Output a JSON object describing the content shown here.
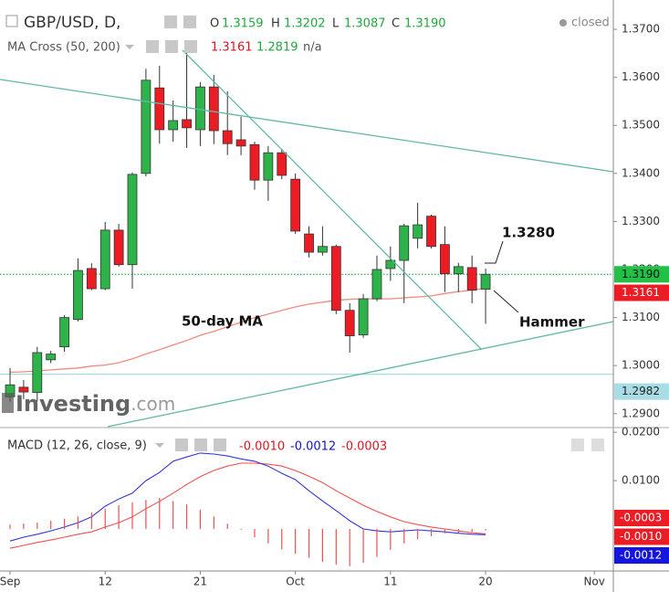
{
  "header": {
    "symbol": "GBP/USD, D,",
    "o_label": "O",
    "open": "1.3159",
    "h_label": "H",
    "high": "1.3202",
    "l_label": "L",
    "low": "1.3087",
    "c_label": "C",
    "close": "1.3190",
    "status": "closed",
    "ma_title": "MA Cross (50, 200)",
    "ma_values": [
      "1.3161",
      "1.2819",
      "n/a"
    ],
    "macd_title": "MACD (12, 26, close, 9)"
  },
  "logo": {
    "name": "Investing",
    "suffix": ".com"
  },
  "chart_data": [
    {
      "type": "candlestick",
      "xlim": [
        -0.74,
        44.4
      ],
      "xticks": [
        {
          "value": 0,
          "label": "Sep"
        },
        {
          "value": 7,
          "label": "12"
        },
        {
          "value": 14,
          "label": "21"
        },
        {
          "value": 21,
          "label": "Oct"
        },
        {
          "value": 28,
          "label": "11"
        },
        {
          "value": 35,
          "label": "20"
        },
        {
          "value": 43,
          "label": "Nov"
        }
      ],
      "ylim": [
        1.2871,
        1.3761
      ],
      "yticks": [
        {
          "value": 1.37,
          "label": "1.3700"
        },
        {
          "value": 1.36,
          "label": "1.3600"
        },
        {
          "value": 1.35,
          "label": "1.3500"
        },
        {
          "value": 1.34,
          "label": "1.3400"
        },
        {
          "value": 1.33,
          "label": "1.3300"
        },
        {
          "value": 1.32,
          "label": "1.3200"
        },
        {
          "value": 1.31,
          "label": "1.3100"
        },
        {
          "value": 1.3,
          "label": "1.3000"
        },
        {
          "value": 1.29,
          "label": "1.2900"
        }
      ],
      "up_color": "#2db34a",
      "down_color": "#ec1c24",
      "open": [
        1.2935,
        1.2955,
        1.2944,
        1.3012,
        1.3039,
        1.3096,
        1.3202,
        1.316,
        1.3282,
        1.321,
        1.34,
        1.3578,
        1.3491,
        1.3512,
        1.3491,
        1.358,
        1.3489,
        1.347,
        1.346,
        1.3386,
        1.3443,
        1.3388,
        1.3274,
        1.3236,
        1.3248,
        1.3115,
        1.3064,
        1.3139,
        1.3202,
        1.3219,
        1.3265,
        1.3311,
        1.3252,
        1.3191,
        1.3204,
        1.3159
      ],
      "high": [
        1.2995,
        1.297,
        1.3039,
        1.3031,
        1.3105,
        1.3223,
        1.3213,
        1.3299,
        1.3295,
        1.3402,
        1.3618,
        1.3624,
        1.3552,
        1.3657,
        1.359,
        1.3605,
        1.3571,
        1.3518,
        1.3466,
        1.3457,
        1.3451,
        1.34,
        1.329,
        1.329,
        1.3252,
        1.313,
        1.3149,
        1.3229,
        1.3248,
        1.3295,
        1.3339,
        1.3314,
        1.329,
        1.3214,
        1.3229,
        1.3202
      ],
      "low": [
        1.2925,
        1.293,
        1.2925,
        1.3005,
        1.3029,
        1.3092,
        1.3157,
        1.3157,
        1.3206,
        1.316,
        1.3394,
        1.3462,
        1.3466,
        1.3453,
        1.3457,
        1.3461,
        1.3438,
        1.3438,
        1.3366,
        1.3343,
        1.3388,
        1.3274,
        1.3225,
        1.3229,
        1.3107,
        1.3027,
        1.3058,
        1.3134,
        1.3176,
        1.313,
        1.3244,
        1.3244,
        1.3153,
        1.3153,
        1.313,
        1.3087
      ],
      "close": [
        1.296,
        1.2945,
        1.3027,
        1.3024,
        1.31,
        1.3198,
        1.316,
        1.3282,
        1.321,
        1.3398,
        1.3594,
        1.3491,
        1.351,
        1.3495,
        1.358,
        1.3489,
        1.3462,
        1.3457,
        1.3386,
        1.3443,
        1.3396,
        1.328,
        1.3236,
        1.3248,
        1.3115,
        1.3062,
        1.3139,
        1.32,
        1.3219,
        1.3291,
        1.3293,
        1.3248,
        1.3191,
        1.3206,
        1.3157,
        1.319
      ],
      "series": [
        {
          "name": "50-day MA",
          "color": "#f08a80",
          "values": [
            1.2986,
            1.2987,
            1.2989,
            1.2991,
            1.2993,
            1.2995,
            1.2999,
            1.3001,
            1.3006,
            1.3014,
            1.3024,
            1.3033,
            1.3043,
            1.3052,
            1.3063,
            1.3071,
            1.3081,
            1.309,
            1.31,
            1.3107,
            1.3115,
            1.3122,
            1.3128,
            1.3132,
            1.3136,
            1.3138,
            1.3139,
            1.3139,
            1.3139,
            1.3141,
            1.3143,
            1.3145,
            1.315,
            1.3154,
            1.3157,
            1.3161
          ]
        }
      ],
      "hline": {
        "value": 1.2982,
        "label": "1.2982",
        "color": "#a8dde6"
      },
      "annotations": [
        "1.3280",
        "Hammer"
      ]
    },
    {
      "type": "macd",
      "ylim": [
        -0.0087,
        0.0206
      ],
      "yticks": [
        {
          "value": 0.02,
          "label": "0.0200"
        },
        {
          "value": 0.01,
          "label": "0.0100"
        }
      ],
      "series": [
        {
          "color": "#f05050",
          "kind": "line",
          "values": [
            -0.004,
            -0.0034,
            -0.0028,
            -0.0023,
            -0.0017,
            -0.0011,
            -0.0006,
            0.0004,
            0.0013,
            0.0025,
            0.0042,
            0.0057,
            0.0074,
            0.0092,
            0.0108,
            0.0121,
            0.013,
            0.0136,
            0.0136,
            0.0134,
            0.013,
            0.0121,
            0.0109,
            0.0096,
            0.0079,
            0.0064,
            0.0049,
            0.0036,
            0.0025,
            0.0015,
            0.0009,
            0.0004,
            0.0,
            -0.0004,
            -0.0008,
            -0.001
          ],
          "value_labels": [
            null,
            null,
            null,
            null,
            null,
            null,
            null,
            null,
            null,
            null,
            null,
            null,
            null,
            null,
            null,
            null,
            null,
            null,
            null,
            null,
            null,
            null,
            null,
            null,
            null,
            null,
            null,
            null,
            null,
            null,
            null,
            null,
            null,
            null,
            null,
            "-0.0010"
          ],
          "box_color": "#ec1c24"
        },
        {
          "color": "#3535d8",
          "kind": "line",
          "values": [
            -0.0025,
            -0.0017,
            -0.0011,
            -0.0004,
            0.0004,
            0.0013,
            0.0025,
            0.0047,
            0.0062,
            0.0074,
            0.01,
            0.0117,
            0.014,
            0.0149,
            0.0157,
            0.0155,
            0.0151,
            0.0145,
            0.014,
            0.013,
            0.0115,
            0.0102,
            0.0079,
            0.0058,
            0.0038,
            0.0017,
            0.0,
            -0.0004,
            -0.0006,
            -0.0004,
            -0.0002,
            -0.0004,
            -0.0006,
            -0.0009,
            -0.0011,
            -0.0012
          ],
          "value_labels": [
            null,
            null,
            null,
            null,
            null,
            null,
            null,
            null,
            null,
            null,
            null,
            null,
            null,
            null,
            null,
            null,
            null,
            null,
            null,
            null,
            null,
            null,
            null,
            null,
            null,
            null,
            null,
            null,
            null,
            null,
            null,
            null,
            null,
            null,
            null,
            "-0.0012"
          ],
          "box_color": "#1515e0"
        },
        {
          "color": "#f05050",
          "kind": "histogram",
          "values": [
            0.0009,
            0.0011,
            0.0013,
            0.0017,
            0.0021,
            0.0026,
            0.0034,
            0.0042,
            0.0049,
            0.0055,
            0.006,
            0.0064,
            0.0058,
            0.0051,
            0.004,
            0.0026,
            0.0011,
            -0.0002,
            -0.0017,
            -0.003,
            -0.0042,
            -0.0051,
            -0.006,
            -0.0068,
            -0.0074,
            -0.0077,
            -0.007,
            -0.0058,
            -0.0043,
            -0.003,
            -0.0021,
            -0.0015,
            -0.0009,
            -0.0008,
            -0.0006,
            -0.0003
          ],
          "value_labels": [
            null,
            null,
            null,
            null,
            null,
            null,
            null,
            null,
            null,
            null,
            null,
            null,
            null,
            null,
            null,
            null,
            null,
            null,
            null,
            null,
            null,
            null,
            null,
            null,
            null,
            null,
            null,
            null,
            null,
            null,
            null,
            null,
            null,
            null,
            null,
            "-0.0003"
          ],
          "box_color": "#ec1c24"
        }
      ]
    }
  ]
}
